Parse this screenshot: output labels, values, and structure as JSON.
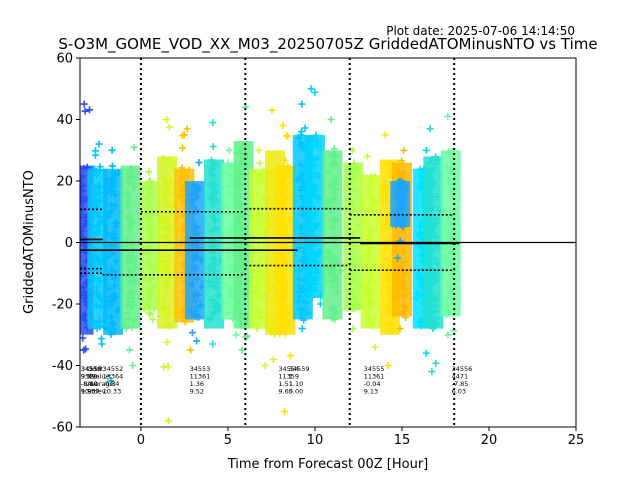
{
  "plot_date": "Plot date: 2025-07-06 14:14:50",
  "chart_data": {
    "type": "scatter",
    "title": "S-O3M_GOME_VOD_XX_M03_20250705Z GriddedATOMinusNTO vs Time",
    "xlabel": "Time from Forecast 00Z [Hour]",
    "ylabel": "GriddedATOMinusNTO",
    "xlim": [
      -3.5,
      25
    ],
    "ylim": [
      -60,
      60
    ],
    "xticks": [
      0,
      5,
      10,
      15,
      20,
      25
    ],
    "yticks": [
      -60,
      -40,
      -20,
      0,
      20,
      40,
      60
    ],
    "grid": false,
    "legend": "none",
    "marker": "+",
    "vlines": [
      0,
      6,
      12,
      18
    ],
    "hline": 0,
    "groups": [
      {
        "x": -3.3,
        "color": "#2b4cff",
        "min": -35,
        "max": 45,
        "core": [
          -30,
          25
        ]
      },
      {
        "x": -2.5,
        "color": "#00c8ff",
        "min": -33,
        "max": 32,
        "core": [
          -28,
          24
        ]
      },
      {
        "x": -1.6,
        "color": "#00b8ff",
        "min": -45,
        "max": 30,
        "core": [
          -30,
          24
        ]
      },
      {
        "x": -0.6,
        "color": "#62f08a",
        "min": -40,
        "max": 31,
        "core": [
          -28,
          25
        ]
      },
      {
        "x": 0.5,
        "color": "#aaff4c",
        "min": -25,
        "max": 23,
        "core": [
          -22,
          20
        ]
      },
      {
        "x": 1.5,
        "color": "#d4f51e",
        "min": -58,
        "max": 40,
        "core": [
          -28,
          28
        ]
      },
      {
        "x": 2.5,
        "color": "#ffc000",
        "min": -35,
        "max": 37,
        "core": [
          -26,
          24
        ]
      },
      {
        "x": 3.1,
        "color": "#1ea4ff",
        "min": -32,
        "max": 26,
        "core": [
          -25,
          20
        ]
      },
      {
        "x": 4.2,
        "color": "#22e0d0",
        "min": -33,
        "max": 39,
        "core": [
          -28,
          27
        ]
      },
      {
        "x": 5.2,
        "color": "#6bffa0",
        "min": -30,
        "max": 30,
        "core": [
          -25,
          26
        ]
      },
      {
        "x": 5.9,
        "color": "#62f08a",
        "min": -35,
        "max": 44,
        "core": [
          -28,
          33
        ]
      },
      {
        "x": 6.8,
        "color": "#c8ff30",
        "min": -40,
        "max": 30,
        "core": [
          -28,
          24
        ]
      },
      {
        "x": 7.7,
        "color": "#eeea14",
        "min": -38,
        "max": 43,
        "core": [
          -30,
          30
        ]
      },
      {
        "x": 8.3,
        "color": "#ffe000",
        "min": -55,
        "max": 38,
        "core": [
          -30,
          25
        ]
      },
      {
        "x": 9.3,
        "color": "#00c8ff",
        "min": -28,
        "max": 45,
        "core": [
          -25,
          35
        ]
      },
      {
        "x": 10.0,
        "color": "#00d4ff",
        "min": -20,
        "max": 50,
        "core": [
          -18,
          35
        ]
      },
      {
        "x": 11.0,
        "color": "#62f08a",
        "min": -25,
        "max": 40,
        "core": [
          -25,
          30
        ]
      },
      {
        "x": 12.2,
        "color": "#aaff4c",
        "min": -28,
        "max": 30,
        "core": [
          -22,
          26
        ]
      },
      {
        "x": 13.2,
        "color": "#c8ff30",
        "min": -34,
        "max": 28,
        "core": [
          -28,
          22
        ]
      },
      {
        "x": 14.3,
        "color": "#ffe000",
        "min": -40,
        "max": 35,
        "core": [
          -30,
          27
        ]
      },
      {
        "x": 15.0,
        "color": "#ffb800",
        "min": -28,
        "max": 30,
        "core": [
          -24,
          26
        ]
      },
      {
        "x": 14.9,
        "color": "#1ea4ff",
        "min": -5,
        "max": 20,
        "core": [
          5,
          20
        ]
      },
      {
        "x": 16.2,
        "color": "#00e0ff",
        "min": -36,
        "max": 30,
        "core": [
          -28,
          24
        ]
      },
      {
        "x": 16.8,
        "color": "#22e0d0",
        "min": -42,
        "max": 37,
        "core": [
          -28,
          28
        ]
      },
      {
        "x": 17.8,
        "color": "#6bffa0",
        "min": -30,
        "max": 41,
        "core": [
          -24,
          30
        ]
      }
    ],
    "mean_segments": [
      {
        "x0": -3.5,
        "x1": -2.2,
        "y": 1.0
      },
      {
        "x0": -3.5,
        "x1": 9.0,
        "y": -2.5
      },
      {
        "x0": 2.8,
        "x1": 12.6,
        "y": 1.5
      },
      {
        "x0": 12.6,
        "x1": 18.3,
        "y": -0.3
      }
    ],
    "std_segments": [
      {
        "x0": -3.5,
        "x1": -2.2,
        "y": 10.8
      },
      {
        "x0": -3.5,
        "x1": -2.2,
        "y": -8.5
      },
      {
        "x0": -3.5,
        "x1": -2.2,
        "y": -10.0
      },
      {
        "x0": -2.2,
        "x1": 0.0,
        "y": -10.5
      },
      {
        "x0": 0.0,
        "x1": 6.0,
        "y": 10.0
      },
      {
        "x0": 0.0,
        "x1": 6.0,
        "y": -10.5
      },
      {
        "x0": 6.0,
        "x1": 12.0,
        "y": 11.0
      },
      {
        "x0": 6.0,
        "x1": 12.0,
        "y": -7.5
      },
      {
        "x0": 12.0,
        "x1": 18.0,
        "y": 9.0
      },
      {
        "x0": 12.0,
        "x1": 18.0,
        "y": -9.0
      }
    ],
    "stat_labels": [
      {
        "x": -3.45,
        "y": -45,
        "lines": [
          "34550",
          "9529",
          "-8.80",
          "10.37"
        ]
      },
      {
        "x": -3.45,
        "y": -45,
        "lines": [
          "34556",
          "9.79",
          "-8.10",
          "9.90"
        ]
      },
      {
        "x": -3.1,
        "y": -45,
        "lines": [
          "Orbit:",
          "Nvalue:",
          "Average:",
          "Stdev:"
        ]
      },
      {
        "x": -2.2,
        "y": -45,
        "lines": [
          "34552",
          "13364",
          "-0.34",
          "10.33"
        ]
      },
      {
        "x": -1.7,
        "y": -45,
        "lines": [
          "",
          "",
          "",
          ""
        ]
      },
      {
        "x": 2.8,
        "y": -45,
        "lines": [
          "34553",
          "11361",
          "1.36",
          "9.52"
        ]
      },
      {
        "x": 7.9,
        "y": -45,
        "lines": [
          "34554",
          "11359",
          "1.51",
          "9.65"
        ]
      },
      {
        "x": 8.5,
        "y": -45,
        "lines": [
          "34559",
          "1",
          "1.10",
          "0.00"
        ]
      },
      {
        "x": 12.8,
        "y": -45,
        "lines": [
          "34555",
          "11361",
          "-0.04",
          "9.13"
        ]
      },
      {
        "x": 17.85,
        "y": -45,
        "lines": [
          "34556",
          "4471",
          "-7.85",
          "6.03"
        ]
      }
    ]
  }
}
